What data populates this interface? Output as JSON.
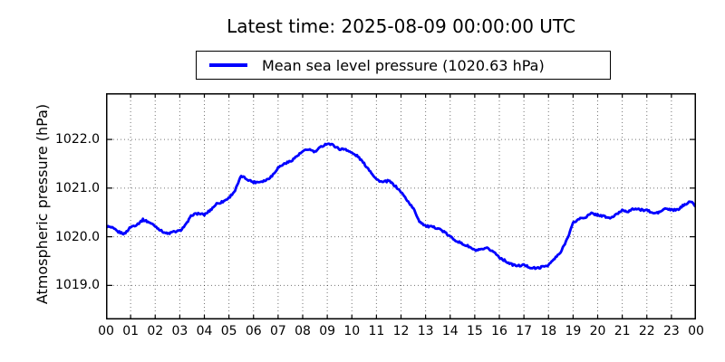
{
  "header": {
    "title": "Latest time: 2025-08-09 00:00:00 UTC"
  },
  "legend": {
    "label": "Mean sea level pressure (1020.63 hPa)"
  },
  "chart_data": {
    "type": "line",
    "title": "Latest time: 2025-08-09 00:00:00 UTC",
    "xlabel": "",
    "ylabel": "Atmospheric pressure (hPa)",
    "legend_position": "top-center-outside",
    "grid": "dotted-both-axes",
    "line_color": "#0000ff",
    "grid_color": "#000000",
    "background_color": "#ffffff",
    "latest_value_hpa": 1020.63,
    "ylim": [
      1018.3,
      1022.95
    ],
    "xlim": [
      0,
      24
    ],
    "y_tick_labels": [
      "1022.0",
      "1021.0",
      "1020.0",
      "1019.0"
    ],
    "y_tick_values": [
      1022.0,
      1021.0,
      1020.0,
      1019.0
    ],
    "x_tick_labels": [
      "00",
      "01",
      "02",
      "03",
      "04",
      "05",
      "06",
      "07",
      "08",
      "09",
      "10",
      "11",
      "12",
      "13",
      "14",
      "15",
      "16",
      "17",
      "18",
      "19",
      "20",
      "21",
      "22",
      "23",
      "00"
    ],
    "x_tick_values": [
      0,
      1,
      2,
      3,
      4,
      5,
      6,
      7,
      8,
      9,
      10,
      11,
      12,
      13,
      14,
      15,
      16,
      17,
      18,
      19,
      20,
      21,
      22,
      23,
      24
    ],
    "noise_amplitude_hpa": 0.02,
    "series": [
      {
        "name": "Mean sea level pressure (1020.63 hPa)",
        "color": "#0000ff",
        "x_hours": [
          0,
          0.25,
          0.5,
          0.75,
          1,
          1.25,
          1.5,
          1.75,
          2,
          2.25,
          2.5,
          2.75,
          3,
          3.25,
          3.5,
          3.75,
          4,
          4.25,
          4.5,
          4.75,
          5,
          5.25,
          5.5,
          5.75,
          6,
          6.25,
          6.5,
          6.75,
          7,
          7.25,
          7.5,
          7.75,
          8,
          8.25,
          8.5,
          8.75,
          9,
          9.25,
          9.5,
          9.75,
          10,
          10.25,
          10.5,
          10.75,
          11,
          11.25,
          11.5,
          11.75,
          12,
          12.25,
          12.5,
          12.75,
          13,
          13.25,
          13.5,
          13.75,
          14,
          14.25,
          14.5,
          14.75,
          15,
          15.25,
          15.5,
          15.75,
          16,
          16.25,
          16.5,
          16.75,
          17,
          17.25,
          17.5,
          17.75,
          18,
          18.25,
          18.5,
          18.75,
          19,
          19.25,
          19.5,
          19.75,
          20,
          20.25,
          20.5,
          20.75,
          21,
          21.25,
          21.5,
          21.75,
          22,
          22.25,
          22.5,
          22.75,
          23,
          23.25,
          23.5,
          23.75,
          24
        ],
        "values": [
          1020.22,
          1020.18,
          1020.1,
          1020.06,
          1020.2,
          1020.25,
          1020.35,
          1020.3,
          1020.22,
          1020.12,
          1020.06,
          1020.1,
          1020.12,
          1020.25,
          1020.45,
          1020.48,
          1020.45,
          1020.55,
          1020.68,
          1020.72,
          1020.8,
          1020.95,
          1021.25,
          1021.18,
          1021.12,
          1021.13,
          1021.16,
          1021.25,
          1021.42,
          1021.5,
          1021.55,
          1021.65,
          1021.75,
          1021.8,
          1021.74,
          1021.85,
          1021.92,
          1021.88,
          1021.8,
          1021.8,
          1021.72,
          1021.65,
          1021.5,
          1021.35,
          1021.18,
          1021.12,
          1021.15,
          1021.05,
          1020.92,
          1020.75,
          1020.58,
          1020.32,
          1020.22,
          1020.2,
          1020.18,
          1020.1,
          1020.0,
          1019.92,
          1019.85,
          1019.8,
          1019.72,
          1019.73,
          1019.76,
          1019.7,
          1019.58,
          1019.5,
          1019.43,
          1019.4,
          1019.42,
          1019.37,
          1019.35,
          1019.38,
          1019.42,
          1019.55,
          1019.68,
          1019.95,
          1020.28,
          1020.37,
          1020.4,
          1020.48,
          1020.45,
          1020.42,
          1020.38,
          1020.45,
          1020.55,
          1020.52,
          1020.58,
          1020.55,
          1020.55,
          1020.48,
          1020.5,
          1020.58,
          1020.55,
          1020.55,
          1020.65,
          1020.73,
          1020.63
        ]
      }
    ]
  }
}
